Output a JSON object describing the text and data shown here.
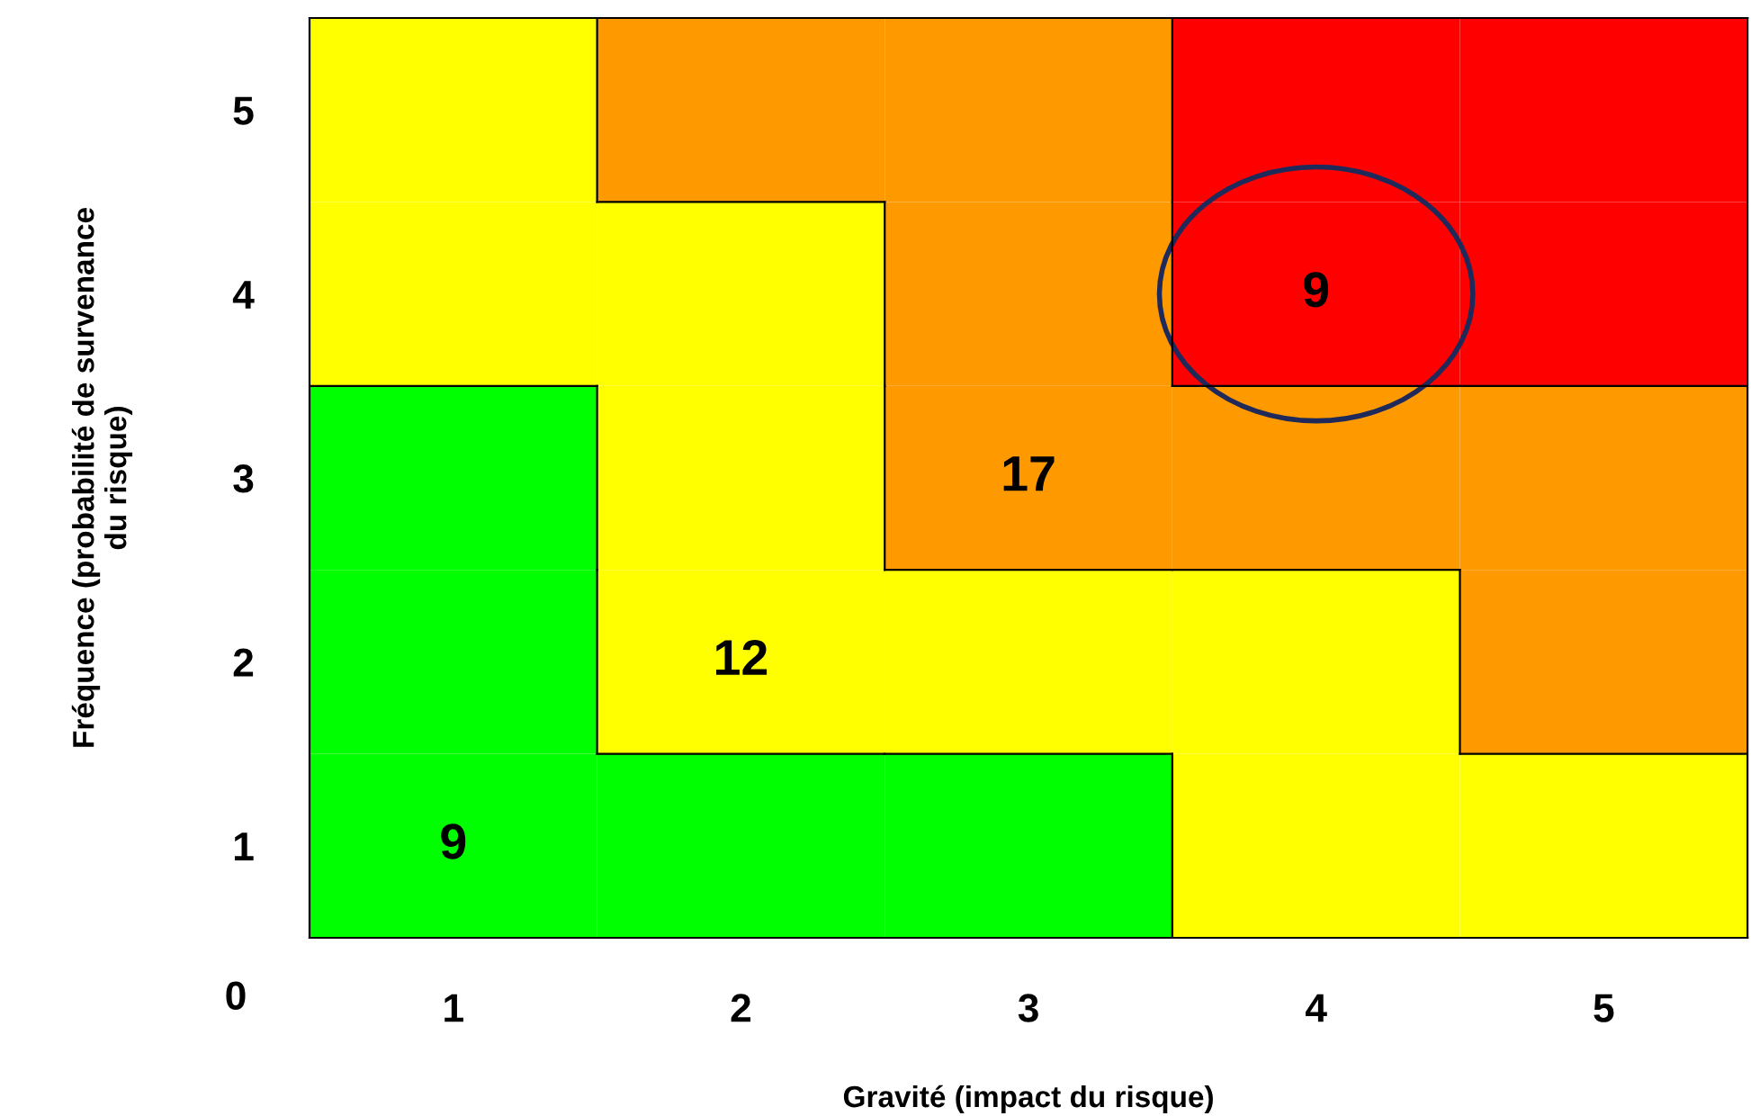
{
  "chart_data": {
    "type": "heatmap",
    "xlabel": "Gravité (impact du risque)",
    "ylabel": "Fréquence (probabilité de survenance\ndu risque)",
    "categories": [
      "1",
      "2",
      "3",
      "4",
      "5"
    ],
    "y_categories": [
      "5",
      "4",
      "3",
      "2",
      "1"
    ],
    "cells": [
      [
        null,
        null,
        null,
        null,
        null
      ],
      [
        null,
        null,
        null,
        9,
        null
      ],
      [
        null,
        null,
        17,
        null,
        null
      ],
      [
        null,
        12,
        null,
        null,
        null
      ],
      [
        9,
        null,
        null,
        null,
        null
      ]
    ],
    "cell_labels": [
      [
        null,
        null,
        null,
        null,
        null
      ],
      [
        null,
        null,
        null,
        "9",
        null
      ],
      [
        null,
        null,
        "17",
        null,
        null
      ],
      [
        null,
        "12",
        null,
        null,
        null
      ],
      [
        "9",
        null,
        null,
        null,
        null
      ]
    ],
    "colors": [
      [
        "#ffff00",
        "#ff9900",
        "#ff9900",
        "#ff0000",
        "#ff0000"
      ],
      [
        "#ffff00",
        "#ffff00",
        "#ff9900",
        "#ff0000",
        "#ff0000"
      ],
      [
        "#00ff00",
        "#ffff00",
        "#ff9900",
        "#ff9900",
        "#ff9900"
      ],
      [
        "#00ff00",
        "#ffff00",
        "#ffff00",
        "#ffff00",
        "#ff9900"
      ],
      [
        "#00ff00",
        "#00ff00",
        "#00ff00",
        "#ffff00",
        "#ffff00"
      ]
    ],
    "annotations": [
      "0"
    ]
  }
}
